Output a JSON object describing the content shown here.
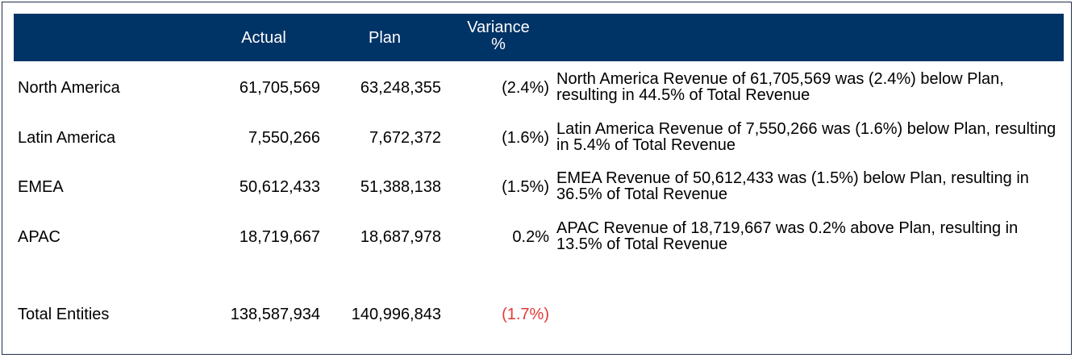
{
  "header": {
    "actual": "Actual",
    "plan": "Plan",
    "variance_line1": "Variance",
    "variance_line2": "%"
  },
  "rows": [
    {
      "name": "North America",
      "actual": "61,705,569",
      "plan": "63,248,355",
      "variance": "(2.4%)",
      "comment": "North America Revenue of 61,705,569 was (2.4%) below Plan, resulting in 44.5% of Total Revenue"
    },
    {
      "name": "Latin America",
      "actual": "7,550,266",
      "plan": "7,672,372",
      "variance": "(1.6%)",
      "comment": "Latin America Revenue of 7,550,266 was (1.6%) below Plan, resulting in 5.4% of Total Revenue"
    },
    {
      "name": "EMEA",
      "actual": "50,612,433",
      "plan": "51,388,138",
      "variance": "(1.5%)",
      "comment": "EMEA Revenue of 50,612,433 was (1.5%) below Plan, resulting in 36.5% of Total Revenue"
    },
    {
      "name": "APAC",
      "actual": "18,719,667",
      "plan": "18,687,978",
      "variance": "0.2%",
      "comment": "APAC Revenue of 18,719,667 was 0.2% above Plan, resulting in 13.5% of Total Revenue"
    }
  ],
  "total": {
    "name": "Total Entities",
    "actual": "138,587,934",
    "plan": "140,996,843",
    "variance": "(1.7%)"
  },
  "colors": {
    "header_bg": "#003366",
    "negative_total": "#e53935"
  }
}
